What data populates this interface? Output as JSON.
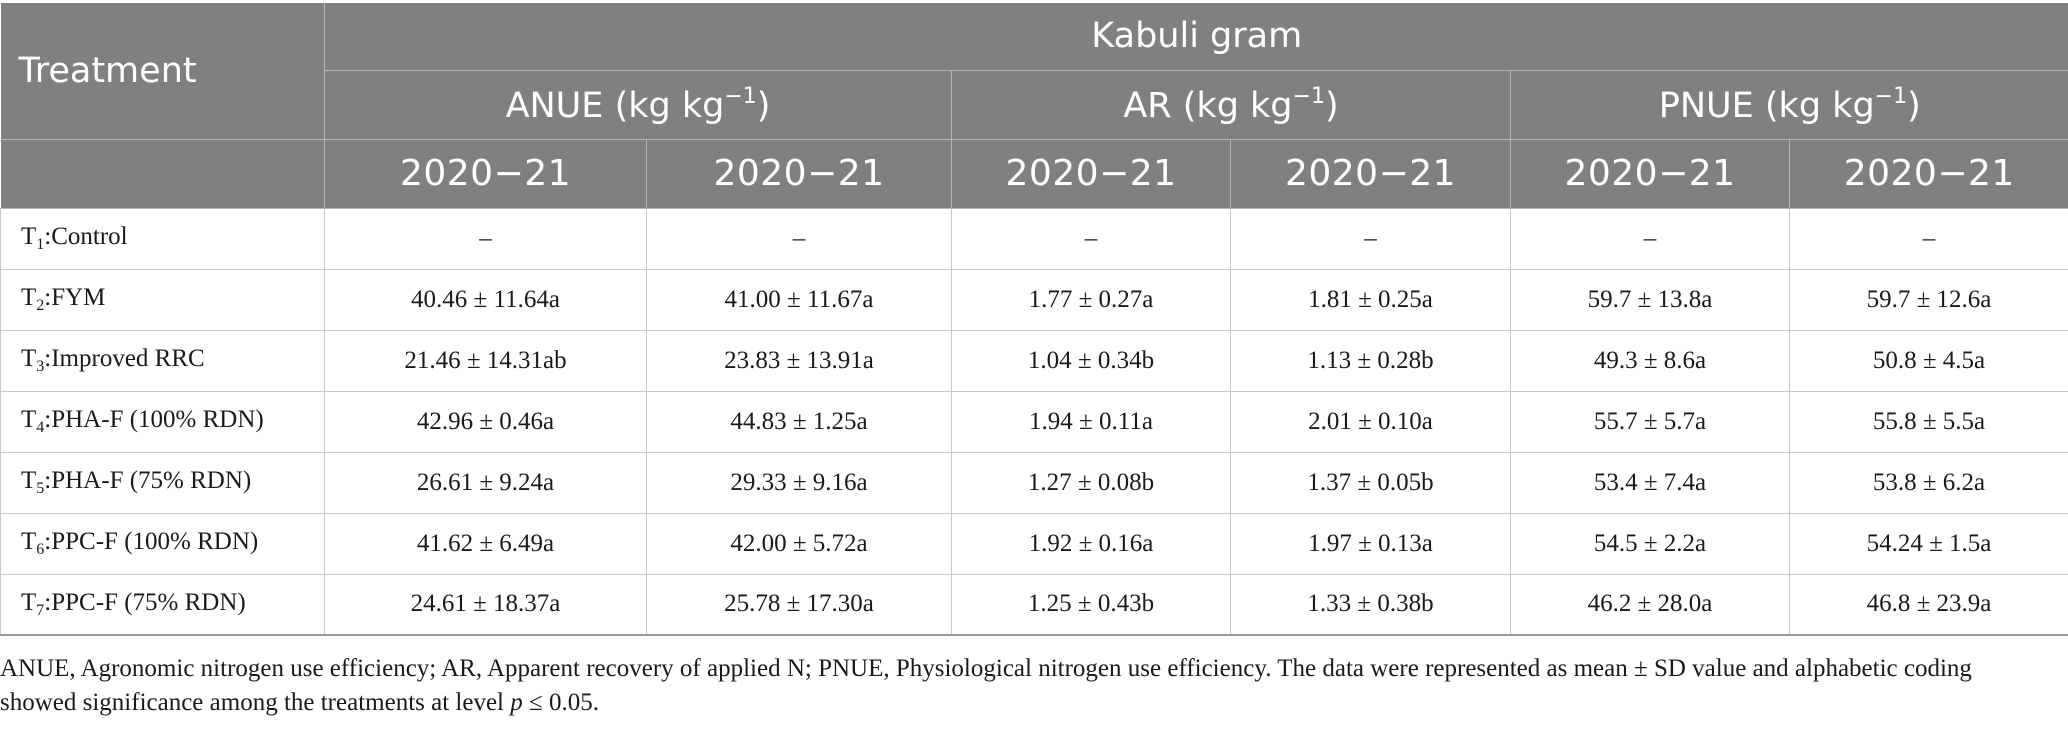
{
  "header": {
    "treatment": "Treatment",
    "group": "Kabuli gram",
    "metrics": [
      {
        "name": "ANUE",
        "unit": "(kg kg",
        "sup": "−1",
        "close": ")"
      },
      {
        "name": "AR",
        "unit": "(kg kg",
        "sup": "−1",
        "close": ")"
      },
      {
        "name": "PNUE",
        "unit": "(kg kg",
        "sup": "−1",
        "close": ")"
      }
    ],
    "years": [
      "2020−21",
      "2020−21",
      "2020−21",
      "2020−21",
      "2020−21",
      "2020−21"
    ]
  },
  "rows": [
    {
      "t": "T",
      "sub": "1",
      "label": ":Control",
      "values": [
        "–",
        "–",
        "–",
        "–",
        "–",
        "–"
      ]
    },
    {
      "t": "T",
      "sub": "2",
      "label": ":FYM",
      "values": [
        "40.46 ± 11.64a",
        "41.00 ± 11.67a",
        "1.77 ± 0.27a",
        "1.81 ± 0.25a",
        "59.7 ± 13.8a",
        "59.7 ± 12.6a"
      ]
    },
    {
      "t": "T",
      "sub": "3",
      "label": ":Improved RRC",
      "values": [
        "21.46 ± 14.31ab",
        "23.83 ± 13.91a",
        "1.04 ± 0.34b",
        "1.13 ± 0.28b",
        "49.3 ± 8.6a",
        "50.8 ± 4.5a"
      ]
    },
    {
      "t": "T",
      "sub": "4",
      "label": ":PHA-F (100% RDN)",
      "values": [
        "42.96 ± 0.46a",
        "44.83 ± 1.25a",
        "1.94 ± 0.11a",
        "2.01 ± 0.10a",
        "55.7 ± 5.7a",
        "55.8 ± 5.5a"
      ]
    },
    {
      "t": "T",
      "sub": "5",
      "label": ":PHA-F (75% RDN)",
      "values": [
        "26.61 ± 9.24a",
        "29.33 ± 9.16a",
        "1.27 ± 0.08b",
        "1.37 ± 0.05b",
        "53.4 ± 7.4a",
        "53.8 ± 6.2a"
      ]
    },
    {
      "t": "T",
      "sub": "6",
      "label": ":PPC-F (100% RDN)",
      "values": [
        "41.62 ± 6.49a",
        "42.00 ± 5.72a",
        "1.92 ± 0.16a",
        "1.97 ± 0.13a",
        "54.5 ± 2.2a",
        "54.24 ± 1.5a"
      ]
    },
    {
      "t": "T",
      "sub": "7",
      "label": ":PPC-F (75% RDN)",
      "values": [
        "24.61 ± 18.37a",
        "25.78 ± 17.30a",
        "1.25 ± 0.43b",
        "1.33 ± 0.38b",
        "46.2 ± 28.0a",
        "46.8 ± 23.9a"
      ]
    }
  ],
  "footnote": {
    "text": "ANUE, Agronomic nitrogen use efficiency; AR, Apparent recovery of applied N; PNUE, Physiological nitrogen use efficiency. The data were represented as mean ± SD value and alphabetic coding showed significance among the treatments at level ",
    "p": "p",
    "tail": " ≤ 0.05."
  }
}
